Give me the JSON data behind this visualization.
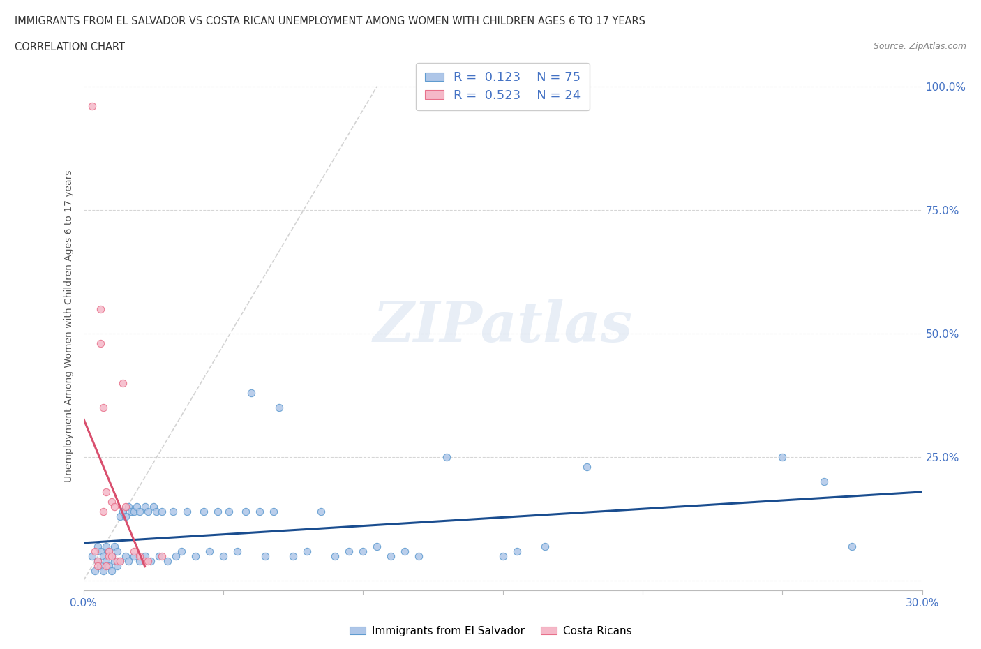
{
  "title_line1": "IMMIGRANTS FROM EL SALVADOR VS COSTA RICAN UNEMPLOYMENT AMONG WOMEN WITH CHILDREN AGES 6 TO 17 YEARS",
  "title_line2": "CORRELATION CHART",
  "source_text": "Source: ZipAtlas.com",
  "ylabel": "Unemployment Among Women with Children Ages 6 to 17 years",
  "xlim": [
    0.0,
    0.3
  ],
  "ylim": [
    -0.02,
    1.05
  ],
  "watermark_text": "ZIPatlas",
  "legend_r1": "0.123",
  "legend_n1": "75",
  "legend_r2": "0.523",
  "legend_n2": "24",
  "blue_color": "#aec6e8",
  "pink_color": "#f5b8c8",
  "blue_edge_color": "#5f9bcf",
  "pink_edge_color": "#e8708a",
  "blue_line_color": "#1a4d8f",
  "pink_line_color": "#d94f6e",
  "diag_color": "#c8c8c8",
  "right_label_color": "#4472c4",
  "title_color": "#333333",
  "source_color": "#888888",
  "ylabel_color": "#555555",
  "background_color": "#ffffff",
  "grid_color": "#cccccc",
  "blue_scatter": [
    [
      0.003,
      0.05
    ],
    [
      0.004,
      0.02
    ],
    [
      0.005,
      0.04
    ],
    [
      0.005,
      0.07
    ],
    [
      0.006,
      0.03
    ],
    [
      0.006,
      0.06
    ],
    [
      0.007,
      0.05
    ],
    [
      0.007,
      0.02
    ],
    [
      0.008,
      0.04
    ],
    [
      0.008,
      0.07
    ],
    [
      0.009,
      0.03
    ],
    [
      0.009,
      0.06
    ],
    [
      0.01,
      0.05
    ],
    [
      0.01,
      0.02
    ],
    [
      0.011,
      0.04
    ],
    [
      0.011,
      0.07
    ],
    [
      0.012,
      0.03
    ],
    [
      0.012,
      0.06
    ],
    [
      0.013,
      0.13
    ],
    [
      0.013,
      0.04
    ],
    [
      0.014,
      0.14
    ],
    [
      0.015,
      0.05
    ],
    [
      0.015,
      0.13
    ],
    [
      0.016,
      0.15
    ],
    [
      0.016,
      0.04
    ],
    [
      0.017,
      0.14
    ],
    [
      0.018,
      0.05
    ],
    [
      0.018,
      0.14
    ],
    [
      0.019,
      0.15
    ],
    [
      0.02,
      0.04
    ],
    [
      0.02,
      0.14
    ],
    [
      0.022,
      0.15
    ],
    [
      0.022,
      0.05
    ],
    [
      0.023,
      0.14
    ],
    [
      0.024,
      0.04
    ],
    [
      0.025,
      0.15
    ],
    [
      0.026,
      0.14
    ],
    [
      0.027,
      0.05
    ],
    [
      0.028,
      0.14
    ],
    [
      0.03,
      0.04
    ],
    [
      0.032,
      0.14
    ],
    [
      0.033,
      0.05
    ],
    [
      0.035,
      0.06
    ],
    [
      0.037,
      0.14
    ],
    [
      0.04,
      0.05
    ],
    [
      0.043,
      0.14
    ],
    [
      0.045,
      0.06
    ],
    [
      0.048,
      0.14
    ],
    [
      0.05,
      0.05
    ],
    [
      0.052,
      0.14
    ],
    [
      0.055,
      0.06
    ],
    [
      0.058,
      0.14
    ],
    [
      0.06,
      0.38
    ],
    [
      0.063,
      0.14
    ],
    [
      0.065,
      0.05
    ],
    [
      0.068,
      0.14
    ],
    [
      0.07,
      0.35
    ],
    [
      0.075,
      0.05
    ],
    [
      0.08,
      0.06
    ],
    [
      0.085,
      0.14
    ],
    [
      0.09,
      0.05
    ],
    [
      0.095,
      0.06
    ],
    [
      0.1,
      0.06
    ],
    [
      0.105,
      0.07
    ],
    [
      0.11,
      0.05
    ],
    [
      0.115,
      0.06
    ],
    [
      0.12,
      0.05
    ],
    [
      0.13,
      0.25
    ],
    [
      0.15,
      0.05
    ],
    [
      0.155,
      0.06
    ],
    [
      0.165,
      0.07
    ],
    [
      0.18,
      0.23
    ],
    [
      0.25,
      0.25
    ],
    [
      0.265,
      0.2
    ],
    [
      0.275,
      0.07
    ]
  ],
  "pink_scatter": [
    [
      0.003,
      0.96
    ],
    [
      0.004,
      0.06
    ],
    [
      0.005,
      0.04
    ],
    [
      0.005,
      0.03
    ],
    [
      0.006,
      0.55
    ],
    [
      0.006,
      0.48
    ],
    [
      0.007,
      0.14
    ],
    [
      0.007,
      0.35
    ],
    [
      0.008,
      0.18
    ],
    [
      0.008,
      0.03
    ],
    [
      0.009,
      0.06
    ],
    [
      0.009,
      0.05
    ],
    [
      0.01,
      0.05
    ],
    [
      0.01,
      0.16
    ],
    [
      0.011,
      0.15
    ],
    [
      0.012,
      0.04
    ],
    [
      0.013,
      0.04
    ],
    [
      0.014,
      0.4
    ],
    [
      0.015,
      0.15
    ],
    [
      0.018,
      0.06
    ],
    [
      0.02,
      0.05
    ],
    [
      0.022,
      0.04
    ],
    [
      0.023,
      0.04
    ],
    [
      0.028,
      0.05
    ]
  ]
}
